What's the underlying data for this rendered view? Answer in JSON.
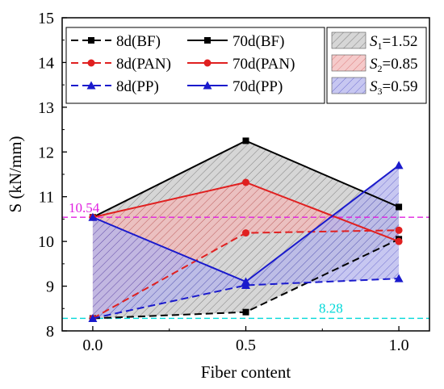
{
  "chart_data": {
    "type": "line",
    "xlabel": "Fiber content",
    "ylabel": "S (kN/mm)",
    "xlim": [
      -0.1,
      1.1
    ],
    "ylim": [
      8,
      15
    ],
    "xticks": [
      0.0,
      0.5,
      1.0
    ],
    "xtick_labels": [
      "0.0",
      "0.5",
      "1.0"
    ],
    "yticks": [
      8,
      9,
      10,
      11,
      12,
      13,
      14,
      15
    ],
    "ytick_labels": [
      "8",
      "9",
      "10",
      "11",
      "12",
      "13",
      "14",
      "15"
    ],
    "x": [
      0.0,
      0.5,
      1.0
    ],
    "series": [
      {
        "name": "8d(BF)",
        "values": [
          8.28,
          8.42,
          10.05
        ],
        "color": "#000000",
        "dash": true,
        "marker": "square"
      },
      {
        "name": "70d(BF)",
        "values": [
          10.54,
          12.25,
          10.77
        ],
        "color": "#000000",
        "dash": false,
        "marker": "square"
      },
      {
        "name": "8d(PAN)",
        "values": [
          8.28,
          10.19,
          10.25
        ],
        "color": "#e02020",
        "dash": true,
        "marker": "circle"
      },
      {
        "name": "70d(PAN)",
        "values": [
          10.54,
          11.32,
          10.0
        ],
        "color": "#e02020",
        "dash": false,
        "marker": "circle"
      },
      {
        "name": "8d(PP)",
        "values": [
          8.28,
          9.02,
          9.17
        ],
        "color": "#1a1acc",
        "dash": true,
        "marker": "triangle"
      },
      {
        "name": "70d(PP)",
        "values": [
          10.54,
          9.1,
          11.7
        ],
        "color": "#1a1acc",
        "dash": false,
        "marker": "triangle"
      }
    ],
    "areas": [
      {
        "label_sym": "S",
        "label_sub": "1",
        "label_val": "=1.52",
        "lower": "8d(BF)",
        "upper": "70d(BF)",
        "fill": "#c8c8c8",
        "hatch": "#555555"
      },
      {
        "label_sym": "S",
        "label_sub": "2",
        "label_val": "=0.85",
        "lower": "8d(PAN)",
        "upper": "70d(PAN)",
        "fill": "#f2b8b8",
        "hatch": "#d05050"
      },
      {
        "label_sym": "S",
        "label_sub": "3",
        "label_val": "=0.59",
        "lower": "8d(PP)",
        "upper": "70d(PP)",
        "fill": "#b4b4ec",
        "hatch": "#4040c0"
      }
    ],
    "reference_lines": [
      {
        "value": 10.54,
        "label": "10.54",
        "color": "#e020e0"
      },
      {
        "value": 8.28,
        "label": "8.28",
        "color": "#00d8d8"
      }
    ],
    "grid": false,
    "legend_position": "top"
  }
}
